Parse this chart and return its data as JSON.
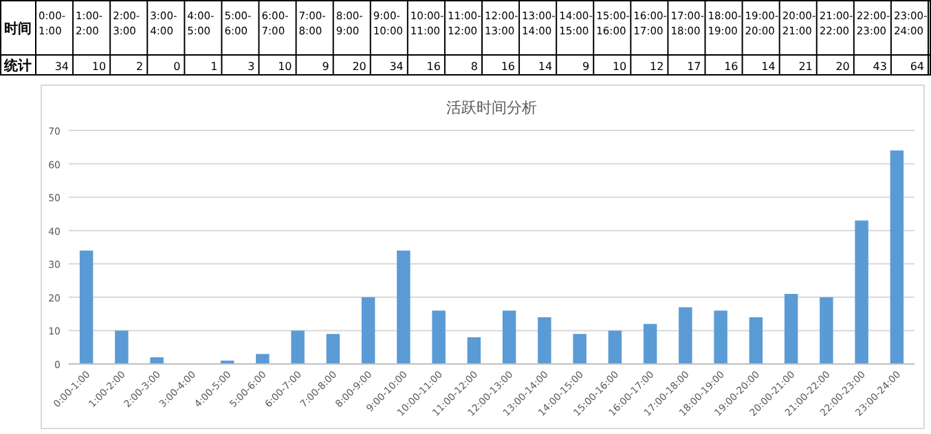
{
  "chart_data": {
    "type": "bar",
    "title": "活跃时间分析",
    "categories": [
      "0:00-1:00",
      "1:00-2:00",
      "2:00-3:00",
      "3:00-4:00",
      "4:00-5:00",
      "5:00-6:00",
      "6:00-7:00",
      "7:00-8:00",
      "8:00-9:00",
      "9:00-10:00",
      "10:00-11:00",
      "11:00-12:00",
      "12:00-13:00",
      "13:00-14:00",
      "14:00-15:00",
      "15:00-16:00",
      "16:00-17:00",
      "17:00-18:00",
      "18:00-19:00",
      "19:00-20:00",
      "20:00-21:00",
      "21:00-22:00",
      "22:00-23:00",
      "23:00-24:00"
    ],
    "values": [
      34,
      10,
      2,
      0,
      1,
      3,
      10,
      9,
      20,
      34,
      16,
      8,
      16,
      14,
      9,
      10,
      12,
      17,
      16,
      14,
      21,
      20,
      43,
      64
    ],
    "color": "#5b9bd5",
    "ylim": [
      0,
      70
    ],
    "yticks": [
      0,
      10,
      20,
      30,
      40,
      50,
      60,
      70
    ],
    "grid": "y",
    "annotations": [
      "时间",
      "统计",
      "34",
      "10",
      "2",
      "0",
      "1",
      "3",
      "10",
      "9",
      "20",
      "34",
      "16",
      "8",
      "16",
      "14",
      "9",
      "10",
      "12",
      "17",
      "16",
      "14",
      "21",
      "20",
      "43",
      "64"
    ]
  }
}
